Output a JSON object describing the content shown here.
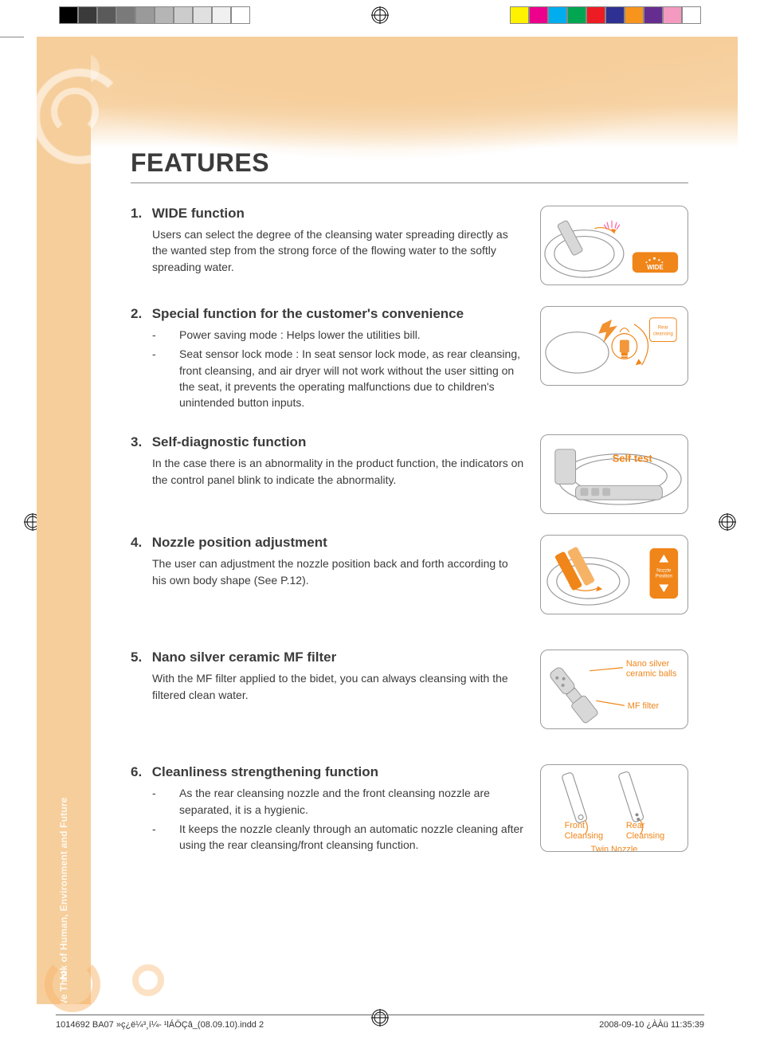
{
  "colorbar": {
    "left": [
      "#000000",
      "#3a3a3a",
      "#5a5a5a",
      "#7a7a7a",
      "#9a9a9a",
      "#b5b5b5",
      "#cccccc",
      "#e0e0e0",
      "#f0f0f0",
      "#ffffff"
    ],
    "right": [
      "#fff200",
      "#ec008c",
      "#00aeef",
      "#00a651",
      "#ed1c24",
      "#2e3192",
      "#f7941d",
      "#662d91",
      "#f49ac1",
      "#ffffff"
    ]
  },
  "side": {
    "vtext": "We Think of Human, Environment and Future",
    "pagenum": "2"
  },
  "title": "FEATURES",
  "features": [
    {
      "num": "1.",
      "title": "WIDE function",
      "body": "Users can select the degree of the cleansing water spreading directly as the wanted step from the strong force of the flowing water to the softly spreading water.",
      "illus": "wide"
    },
    {
      "num": "2.",
      "title": "Special function for the customer's convenience",
      "bullets": [
        "Power saving mode : Helps lower the utilities bill.",
        "Seat sensor lock mode : In seat sensor lock mode, as rear cleansing, front cleansing, and air dryer will not work without the user sitting on the seat, it prevents the operating malfunctions due to children's unintended button inputs."
      ],
      "illus": "power"
    },
    {
      "num": "3.",
      "title": "Self-diagnostic function",
      "body": "In the case there is an abnormality in the product function, the indicators on the control panel blink to indicate the abnormality.",
      "illus": "selftest"
    },
    {
      "num": "4.",
      "title": "Nozzle position adjustment",
      "body": "The user can adjustment the nozzle position back and forth according to his own body shape (See P.12).",
      "illus": "nozzle"
    },
    {
      "num": "5.",
      "title": "Nano silver ceramic MF filter",
      "body": "With the MF filter applied to the bidet, you can always cleansing with the filtered clean water.",
      "illus": "filter"
    },
    {
      "num": "6.",
      "title": "Cleanliness strengthening function",
      "bullets": [
        "As the rear cleansing nozzle and the front cleansing nozzle are separated, it is a hygienic.",
        "It keeps the nozzle cleanly through an automatic nozzle cleaning after using the rear cleansing/front cleansing function."
      ],
      "illus": "twin"
    }
  ],
  "illus_labels": {
    "wide": "WIDE",
    "rear_cleansing": "Rear\ncleansing",
    "selftest": "Self test",
    "nozzle_position": "Nozzle\nPosition",
    "nano": "Nano silver\nceramic balls",
    "mf": "MF filter",
    "front": "Front\nCleansing",
    "rear": "Rear\nCleansing",
    "twin": "Twin Nozzle"
  },
  "footer": {
    "left": "1014692 BA07 »ç¿ë¼³¸í¼- ¹lÁÖÇâ_(08.09.10).indd   2",
    "right": "2008-09-10   ¿ÀÀü 11:35:39"
  },
  "colors": {
    "accent": "#f08519",
    "sidebar": "#f6ce9b",
    "text": "#3b3b3b",
    "border": "#9c9c9c"
  }
}
